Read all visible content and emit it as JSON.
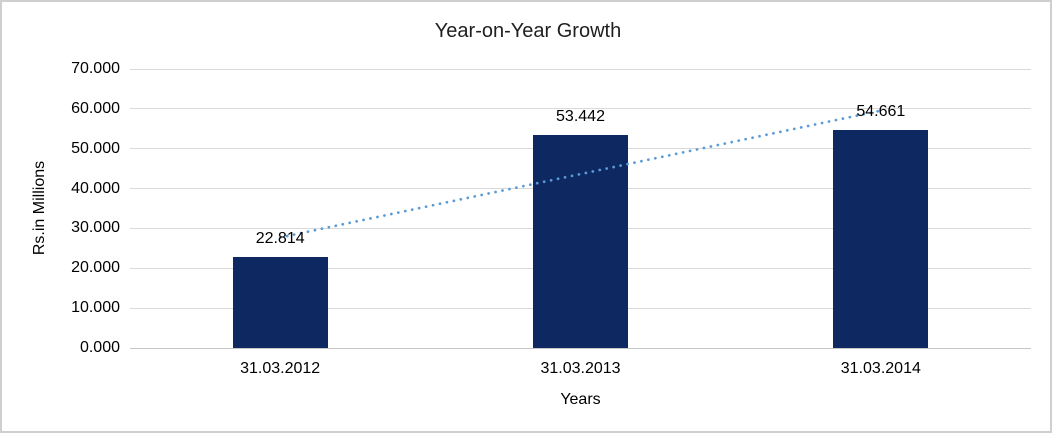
{
  "chart_data": {
    "type": "bar",
    "title": "Year-on-Year Growth",
    "xlabel": "Years",
    "ylabel": "Rs.in Millions",
    "categories": [
      "31.03.2012",
      "31.03.2013",
      "31.03.2014"
    ],
    "values": [
      22.814,
      53.442,
      54.661
    ],
    "data_labels": [
      "22.814",
      "53.442",
      "54.661"
    ],
    "ylim": [
      0,
      70
    ],
    "ytick_step": 10,
    "ytick_labels": [
      "0.000",
      "10.000",
      "20.000",
      "30.000",
      "40.000",
      "50.000",
      "60.000",
      "70.000"
    ],
    "grid": true,
    "legend": "none",
    "trendline": {
      "type": "linear",
      "style": "dotted"
    },
    "colors": {
      "bar": "#0e2962",
      "trendline": "#5b9bd5",
      "gridline": "#d9d9d9",
      "axis_line": "#c6c6c6",
      "text": "#000000",
      "background": "#ffffff",
      "frame_border": "#cfcfcf"
    }
  }
}
